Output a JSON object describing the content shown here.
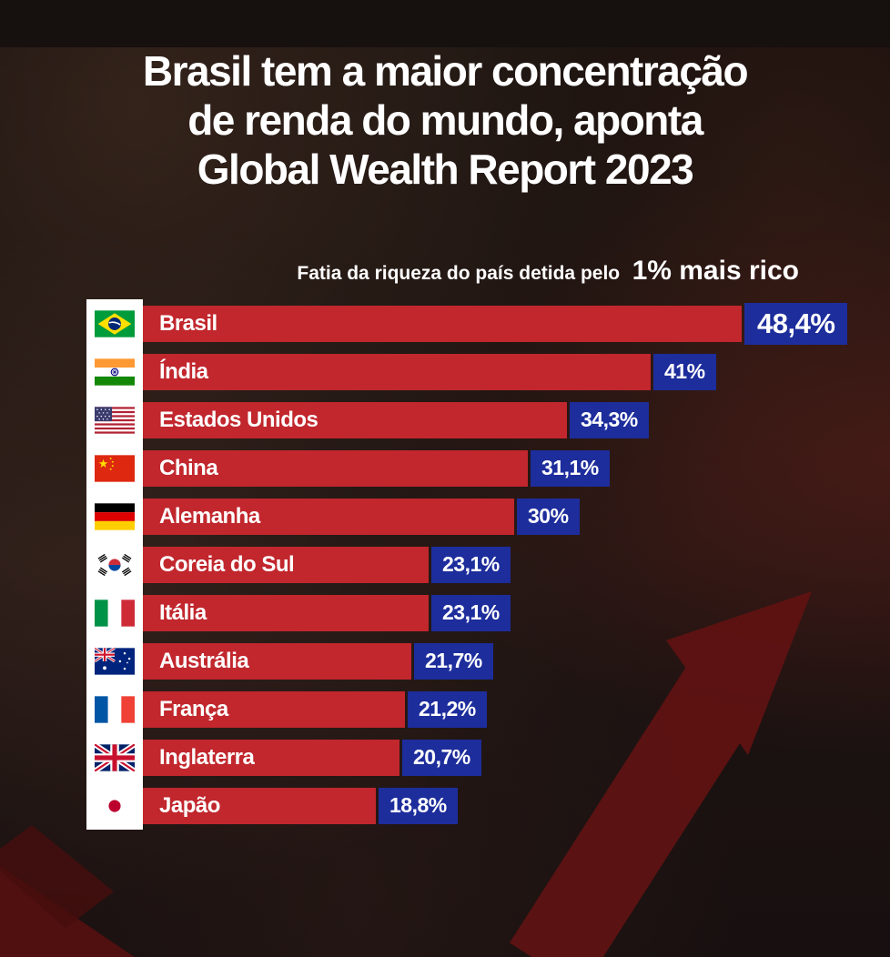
{
  "header": {
    "title_lines": [
      "Brasil tem a maior concentração",
      "de renda do mundo, aponta",
      "Global Wealth Report 2023"
    ]
  },
  "subtitle": {
    "prefix": "Fatia da riqueza do país detida pelo",
    "highlight": "1% mais rico"
  },
  "colors": {
    "bar_red": "#c1272d",
    "badge_blue": "#1d2d9c",
    "flag_strip_white": "#ffffff",
    "title_white": "#ffffff",
    "background_dark": "#16100f",
    "arrow_dark_red": "#641212"
  },
  "chart_data": {
    "type": "bar",
    "orientation": "horizontal",
    "title": "Fatia da riqueza do país detida pelo 1% mais rico",
    "legend": "none",
    "grid": false,
    "xlim": [
      0,
      50
    ],
    "categories": [
      "Brasil",
      "Índia",
      "Estados Unidos",
      "China",
      "Alemanha",
      "Coreia do Sul",
      "Itália",
      "Austrália",
      "França",
      "Inglaterra",
      "Japão"
    ],
    "values": [
      48.4,
      41,
      34.3,
      31.1,
      30,
      23.1,
      23.1,
      21.7,
      21.2,
      20.7,
      18.8
    ],
    "value_labels": [
      "48,4%",
      "41%",
      "34,3%",
      "31,1%",
      "30%",
      "23,1%",
      "23,1%",
      "21,7%",
      "21,2%",
      "20,7%",
      "18,8%"
    ],
    "rows": [
      {
        "country": "Brasil",
        "value": 48.4,
        "label": "48,4%"
      },
      {
        "country": "Índia",
        "value": 41,
        "label": "41%"
      },
      {
        "country": "Estados Unidos",
        "value": 34.3,
        "label": "34,3%"
      },
      {
        "country": "China",
        "value": 31.1,
        "label": "31,1%"
      },
      {
        "country": "Alemanha",
        "value": 30,
        "label": "30%"
      },
      {
        "country": "Coreia do Sul",
        "value": 23.1,
        "label": "23,1%"
      },
      {
        "country": "Itália",
        "value": 23.1,
        "label": "23,1%"
      },
      {
        "country": "Austrália",
        "value": 21.7,
        "label": "21,7%"
      },
      {
        "country": "França",
        "value": 21.2,
        "label": "21,2%"
      },
      {
        "country": "Inglaterra",
        "value": 20.7,
        "label": "20,7%"
      },
      {
        "country": "Japão",
        "value": 18.8,
        "label": "18,8%"
      }
    ]
  }
}
